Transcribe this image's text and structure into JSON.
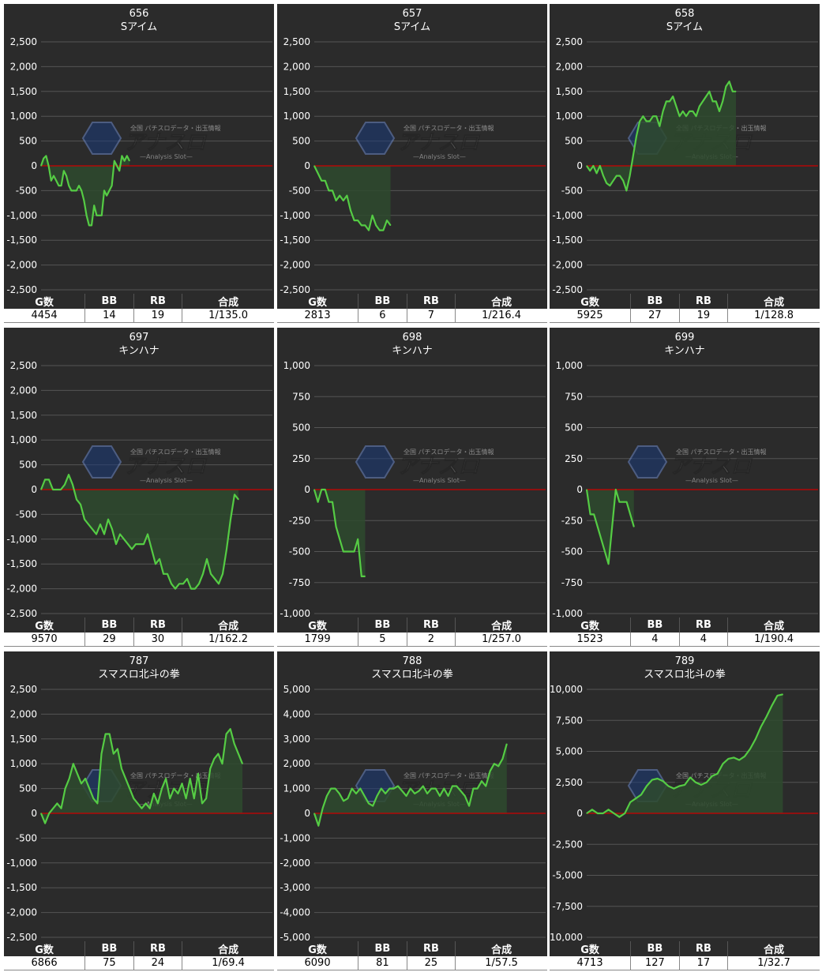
{
  "stat_headers": {
    "g": "G数",
    "bb": "BB",
    "rb": "RB",
    "combined": "合成"
  },
  "watermark": {
    "brand": "アナスロ",
    "tagline": "全国 パチスロデータ・出玉情報",
    "sub": "—Analysis Slot—"
  },
  "colors": {
    "line": "#55cc44",
    "zero": "#cc0000",
    "fill": "#2e4a2e",
    "panel": "#2b2b2b"
  },
  "chart_data": [
    {
      "type": "line",
      "machine": "656",
      "name": "Sアイム",
      "ylim": [
        -2500,
        2500
      ],
      "yticks": [
        "2,500",
        "2,000",
        "1,500",
        "1,000",
        "500",
        "0",
        "-500",
        "-1,000",
        "-1,500",
        "-2,000",
        "-2,500"
      ],
      "values": [
        0,
        150,
        200,
        0,
        -300,
        -200,
        -300,
        -400,
        -400,
        -100,
        -200,
        -400,
        -500,
        -500,
        -500,
        -400,
        -500,
        -700,
        -1000,
        -1200,
        -1200,
        -800,
        -1000,
        -1000,
        -1000,
        -500,
        -600,
        -500,
        -400,
        100,
        0,
        -100,
        200,
        100,
        200,
        100
      ],
      "stats": {
        "g": "4454",
        "bb": "14",
        "rb": "19",
        "combined": "1/135.0"
      }
    },
    {
      "type": "line",
      "machine": "657",
      "name": "Sアイム",
      "ylim": [
        -2500,
        2500
      ],
      "yticks": [
        "2,500",
        "2,000",
        "1,500",
        "1,000",
        "500",
        "0",
        "-500",
        "-1,000",
        "-1,500",
        "-2,000",
        "-2,500"
      ],
      "values": [
        0,
        -150,
        -300,
        -300,
        -500,
        -500,
        -700,
        -600,
        -700,
        -600,
        -900,
        -1100,
        -1100,
        -1200,
        -1200,
        -1300,
        -1000,
        -1200,
        -1300,
        -1300,
        -1100,
        -1200
      ],
      "stats": {
        "g": "2813",
        "bb": "6",
        "rb": "7",
        "combined": "1/216.4"
      }
    },
    {
      "type": "line",
      "machine": "658",
      "name": "Sアイム",
      "ylim": [
        -2500,
        2500
      ],
      "yticks": [
        "2,500",
        "2,000",
        "1,500",
        "1,000",
        "500",
        "0",
        "-500",
        "-1,000",
        "-1,500",
        "-2,000",
        "-2,500"
      ],
      "values": [
        0,
        -100,
        0,
        -150,
        0,
        -200,
        -350,
        -400,
        -300,
        -200,
        -200,
        -300,
        -500,
        -200,
        200,
        600,
        900,
        1000,
        900,
        900,
        1000,
        1000,
        800,
        1100,
        1300,
        1300,
        1400,
        1200,
        1000,
        1100,
        1000,
        1100,
        1100,
        1000,
        1200,
        1300,
        1400,
        1500,
        1300,
        1300,
        1100,
        1300,
        1600,
        1700,
        1500,
        1500
      ],
      "stats": {
        "g": "5925",
        "bb": "27",
        "rb": "19",
        "combined": "1/128.8"
      }
    },
    {
      "type": "line",
      "machine": "697",
      "name": "キンハナ",
      "ylim": [
        -2500,
        2500
      ],
      "yticks": [
        "2,500",
        "2,000",
        "1,500",
        "1,000",
        "500",
        "0",
        "-500",
        "-1,000",
        "-1,500",
        "-2,000",
        "-2,500"
      ],
      "values": [
        0,
        200,
        200,
        0,
        0,
        0,
        100,
        300,
        100,
        -200,
        -300,
        -600,
        -700,
        -800,
        -900,
        -700,
        -900,
        -600,
        -800,
        -1100,
        -900,
        -1000,
        -1100,
        -1200,
        -1100,
        -1100,
        -1100,
        -900,
        -1200,
        -1500,
        -1400,
        -1700,
        -1700,
        -1900,
        -2000,
        -1900,
        -1900,
        -1800,
        -2000,
        -2000,
        -1900,
        -1700,
        -1400,
        -1700,
        -1800,
        -1900,
        -1700,
        -1200,
        -600,
        -100,
        -200
      ],
      "stats": {
        "g": "9570",
        "bb": "29",
        "rb": "30",
        "combined": "1/162.2"
      }
    },
    {
      "type": "line",
      "machine": "698",
      "name": "キンハナ",
      "ylim": [
        -1000,
        1000
      ],
      "yticks": [
        "1,000",
        "750",
        "500",
        "250",
        "0",
        "-250",
        "-500",
        "-750",
        "-1,000"
      ],
      "values": [
        0,
        -100,
        0,
        0,
        -100,
        -100,
        -300,
        -400,
        -500,
        -500,
        -500,
        -500,
        -400,
        -700,
        -700
      ],
      "stats": {
        "g": "1799",
        "bb": "5",
        "rb": "2",
        "combined": "1/257.0"
      }
    },
    {
      "type": "line",
      "machine": "699",
      "name": "キンハナ",
      "ylim": [
        -1000,
        1000
      ],
      "yticks": [
        "1,000",
        "750",
        "500",
        "250",
        "0",
        "-250",
        "-500",
        "-750",
        "-1,000"
      ],
      "values": [
        0,
        -200,
        -200,
        -300,
        -400,
        -500,
        -600,
        -300,
        0,
        -100,
        -100,
        -100,
        -200,
        -300
      ],
      "stats": {
        "g": "1523",
        "bb": "4",
        "rb": "4",
        "combined": "1/190.4"
      }
    },
    {
      "type": "line",
      "machine": "787",
      "name": "スマスロ北斗の拳",
      "ylim": [
        -2500,
        2500
      ],
      "yticks": [
        "2,500",
        "2,000",
        "1,500",
        "1,000",
        "500",
        "0",
        "-500",
        "-1,000",
        "-1,500",
        "-2,000",
        "-2,500"
      ],
      "values": [
        0,
        -200,
        0,
        100,
        200,
        100,
        500,
        700,
        1000,
        800,
        600,
        700,
        500,
        300,
        200,
        1200,
        1600,
        1600,
        1200,
        1300,
        900,
        700,
        500,
        300,
        200,
        100,
        200,
        100,
        400,
        200,
        500,
        700,
        300,
        500,
        400,
        600,
        300,
        700,
        300,
        800,
        200,
        300,
        900,
        1100,
        1200,
        1000,
        1600,
        1700,
        1400,
        1200,
        1000
      ],
      "stats": {
        "g": "6866",
        "bb": "75",
        "rb": "24",
        "combined": "1/69.4"
      }
    },
    {
      "type": "line",
      "machine": "788",
      "name": "スマスロ北斗の拳",
      "ylim": [
        -5000,
        5000
      ],
      "yticks": [
        "5,000",
        "4,000",
        "3,000",
        "2,000",
        "1,000",
        "0",
        "-1,000",
        "-2,000",
        "-3,000",
        "-4,000",
        "-5,000"
      ],
      "values": [
        0,
        -500,
        200,
        700,
        1000,
        1000,
        800,
        500,
        600,
        1000,
        800,
        1000,
        700,
        400,
        300,
        700,
        1000,
        800,
        1000,
        1000,
        1100,
        900,
        700,
        1000,
        800,
        900,
        1100,
        800,
        1000,
        1000,
        700,
        1000,
        700,
        1100,
        1100,
        900,
        700,
        300,
        1000,
        1000,
        1300,
        1100,
        1700,
        2000,
        1900,
        2200,
        2800
      ],
      "stats": {
        "g": "6090",
        "bb": "81",
        "rb": "25",
        "combined": "1/57.5"
      }
    },
    {
      "type": "line",
      "machine": "789",
      "name": "スマスロ北斗の拳",
      "ylim": [
        -10000,
        10000
      ],
      "yticks": [
        "10,000",
        "7,500",
        "5,000",
        "2,500",
        "0",
        "-2,500",
        "-5,000",
        "-7,500",
        "-10,000"
      ],
      "values": [
        0,
        300,
        0,
        0,
        300,
        0,
        -300,
        0,
        900,
        1200,
        1500,
        2200,
        2700,
        2800,
        2600,
        2200,
        2000,
        2200,
        2300,
        2900,
        2500,
        2300,
        2500,
        3000,
        3200,
        4000,
        4400,
        4500,
        4300,
        4600,
        5200,
        6000,
        7000,
        7800,
        8700,
        9500,
        9600
      ],
      "stats": {
        "g": "4713",
        "bb": "127",
        "rb": "17",
        "combined": "1/32.7"
      }
    }
  ]
}
